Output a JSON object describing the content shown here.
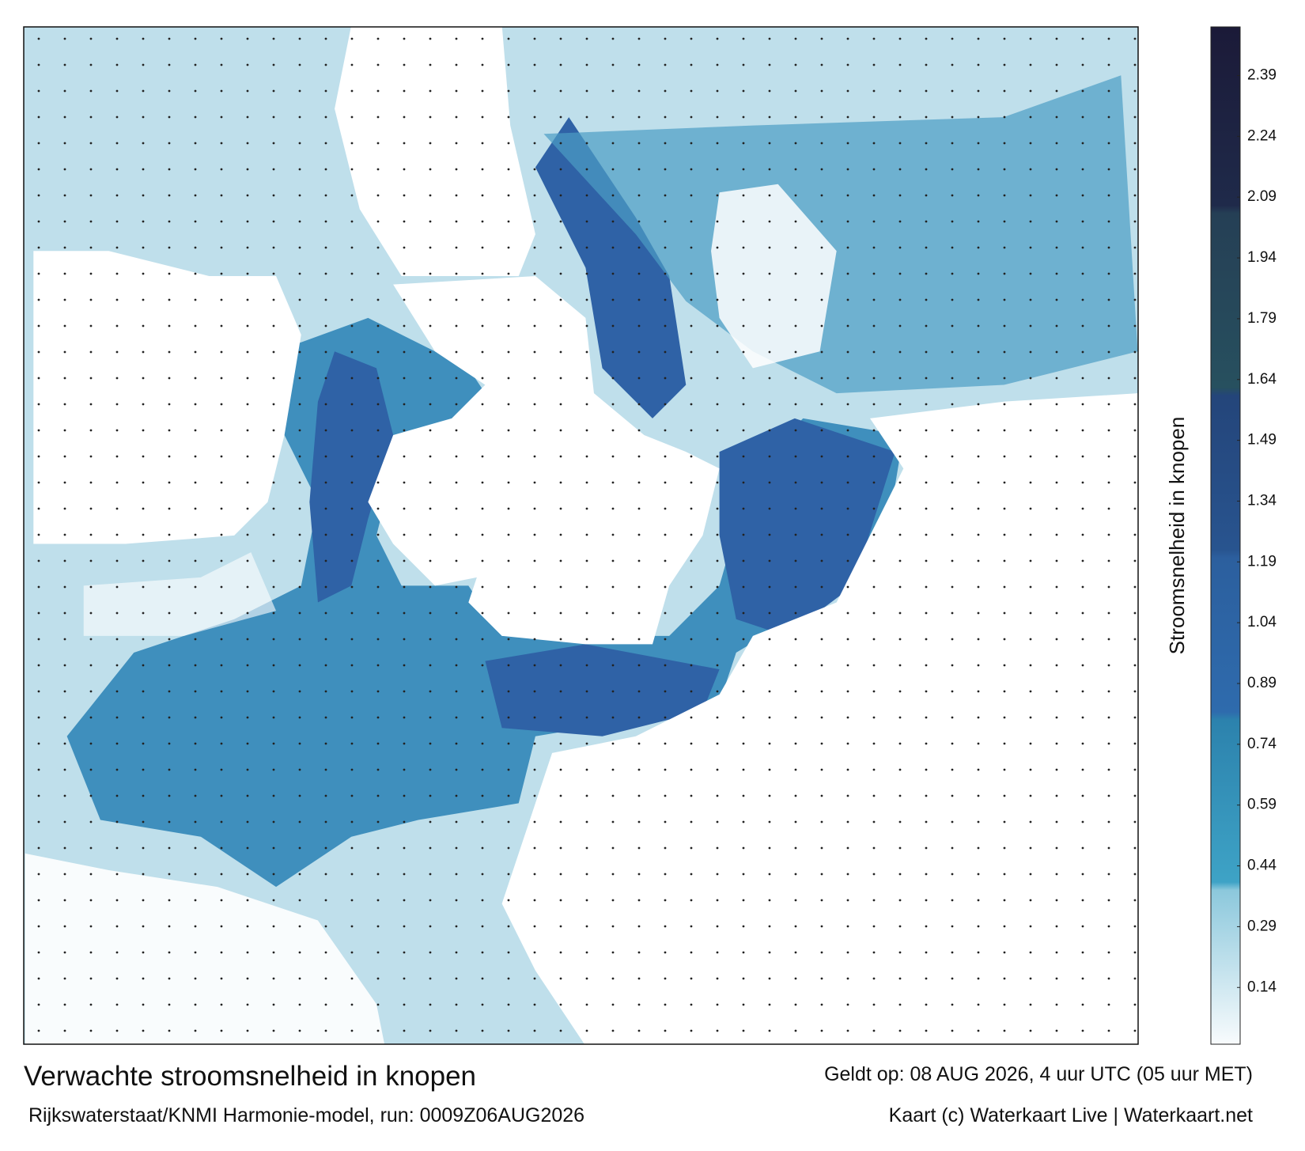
{
  "footer": {
    "title": "Verwachte stroomsnelheid in knopen",
    "model": "Rijkswaterstaat/KNMI Harmonie-model, run: 0009Z06AUG2026",
    "valid": "Geldt op: 08 AUG 2026, 4 uur UTC (05 uur MET)",
    "credit": "Kaart (c) Waterkaart Live | Waterkaart.net"
  },
  "colorbar": {
    "label": "Stroomsnelheid in knopen",
    "ylim": [
      0,
      2.51
    ],
    "yticks": [
      0.14,
      0.29,
      0.44,
      0.59,
      0.74,
      0.89,
      1.04,
      1.19,
      1.34,
      1.49,
      1.64,
      1.79,
      1.94,
      2.09,
      2.24,
      2.39
    ],
    "stops": [
      {
        "value": 0,
        "color": "#f8fbfd"
      },
      {
        "value": 0.38,
        "color": "#8cc8dc"
      },
      {
        "value": 0.4,
        "color": "#3ea3c6"
      },
      {
        "value": 0.8,
        "color": "#2c82ad"
      },
      {
        "value": 0.82,
        "color": "#2e6bad"
      },
      {
        "value": 1.2,
        "color": "#2c5f9e"
      },
      {
        "value": 1.22,
        "color": "#28548f"
      },
      {
        "value": 1.6,
        "color": "#24457a"
      },
      {
        "value": 1.62,
        "color": "#27505f"
      },
      {
        "value": 2.05,
        "color": "#253f55"
      },
      {
        "value": 2.07,
        "color": "#1f2a4a"
      },
      {
        "value": 2.51,
        "color": "#1b1a38"
      }
    ]
  }
}
